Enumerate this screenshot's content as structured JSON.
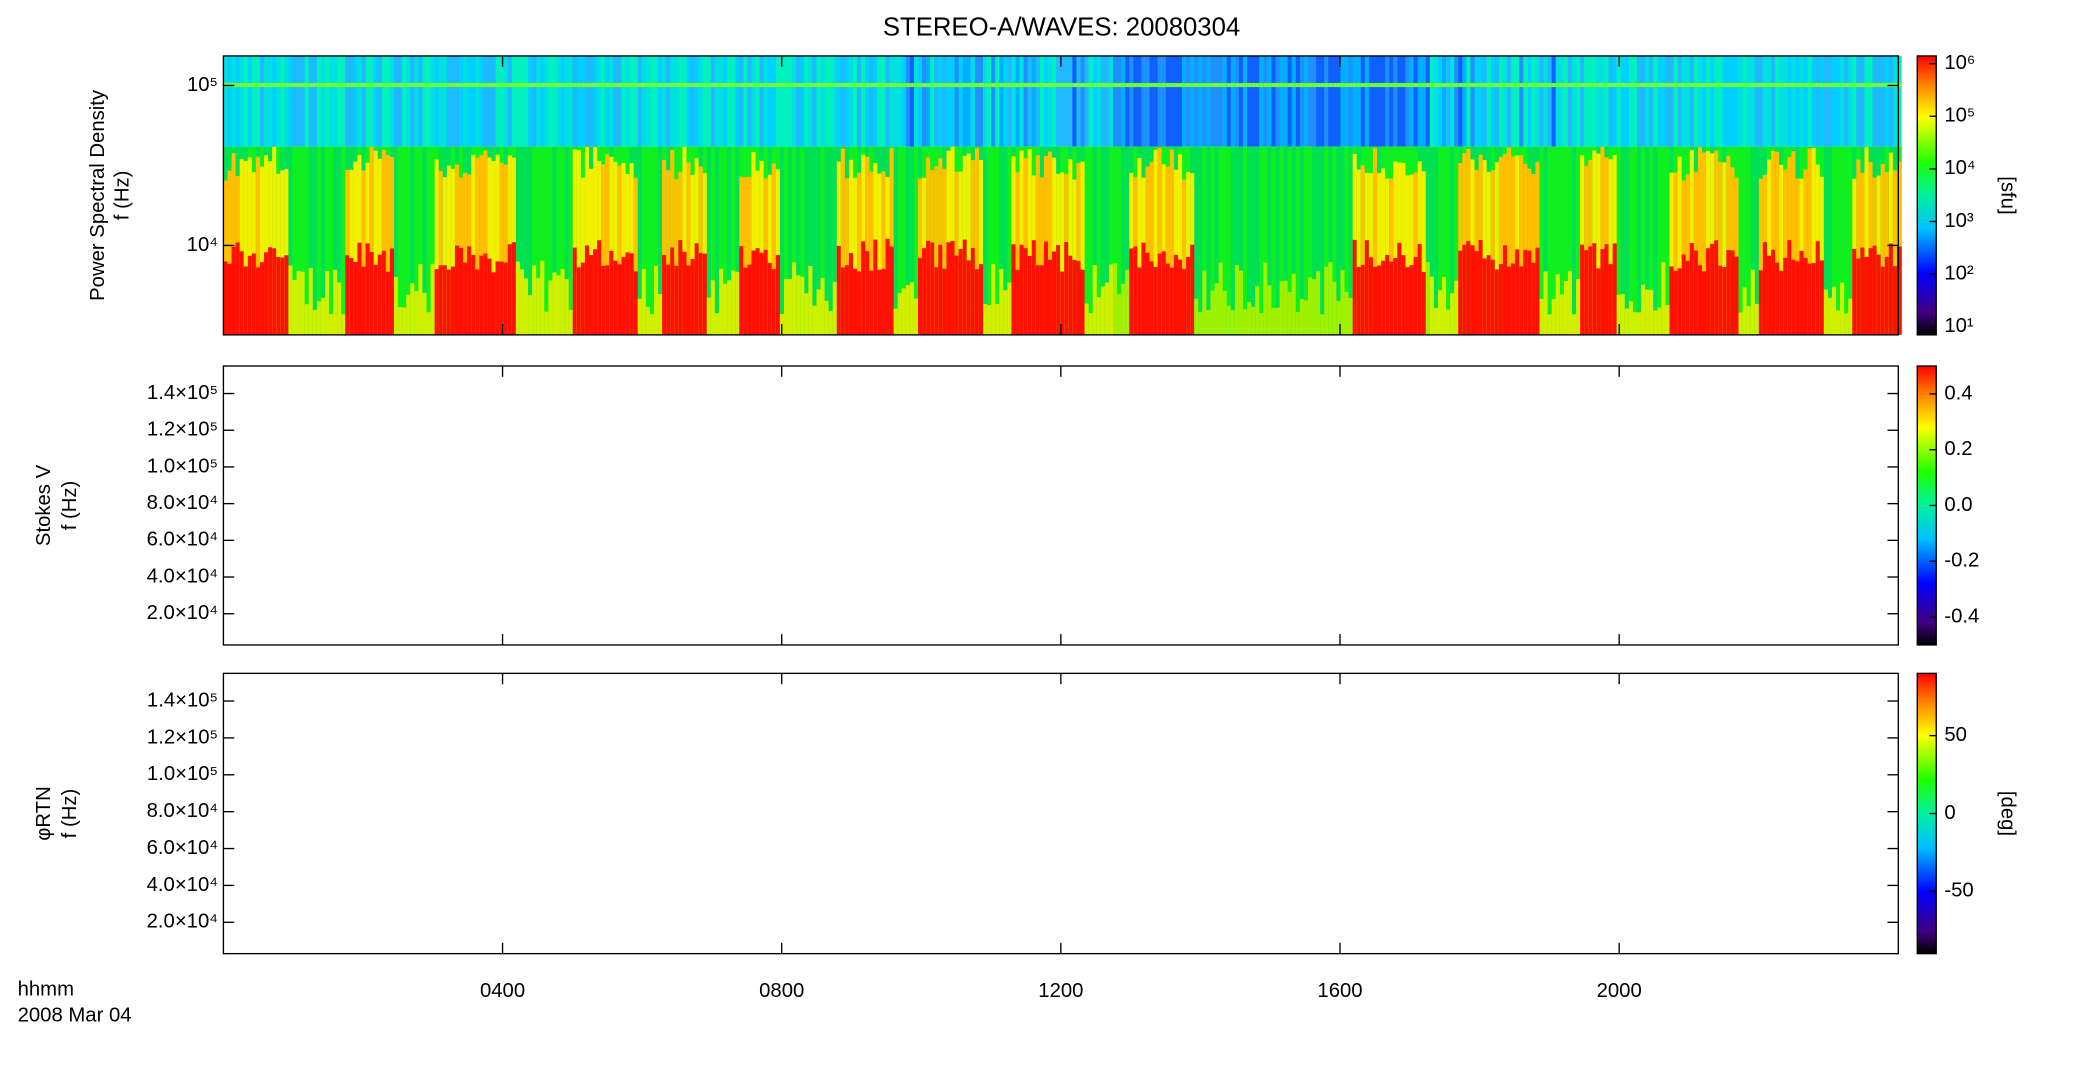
{
  "chart_data": [
    {
      "type": "spectrogram",
      "title": "STEREO-A/WAVES: 20080304",
      "ylabel": [
        "Power Spectral Density",
        "f (Hz)"
      ],
      "log_y": true,
      "ylim": [
        2760,
        153000
      ],
      "yticks": [
        {
          "value": 10000,
          "label": "10⁴"
        },
        {
          "value": 100000,
          "label": "10⁵"
        }
      ],
      "log_z": true,
      "zlim": [
        7,
        1400000
      ],
      "zticks": [
        {
          "value": 10,
          "label": "10¹"
        },
        {
          "value": 100,
          "label": "10²"
        },
        {
          "value": 1000,
          "label": "10³"
        },
        {
          "value": 10000,
          "label": "10⁴"
        },
        {
          "value": 100000,
          "label": "10⁵"
        },
        {
          "value": 1000000,
          "label": "10⁶"
        }
      ],
      "zlabel": "[sfu]"
    },
    {
      "type": "spectrogram",
      "ylabel": [
        "Stokes V",
        "f (Hz)"
      ],
      "log_y": false,
      "ylim": [
        3000,
        155000
      ],
      "yticks": [
        {
          "value": 20000,
          "label": "2.0×10⁴"
        },
        {
          "value": 40000,
          "label": "4.0×10⁴"
        },
        {
          "value": 60000,
          "label": "6.0×10⁴"
        },
        {
          "value": 80000,
          "label": "8.0×10⁴"
        },
        {
          "value": 100000,
          "label": "1.0×10⁵"
        },
        {
          "value": 120000,
          "label": "1.2×10⁵"
        },
        {
          "value": 140000,
          "label": "1.4×10⁵"
        }
      ],
      "log_z": false,
      "zlim": [
        -0.5,
        0.5
      ],
      "zticks": [
        -0.4,
        -0.2,
        {
          "value": 0,
          "label": "0.0"
        },
        0.2,
        0.4
      ]
    },
    {
      "type": "spectrogram",
      "ylabel": [
        "φRTN",
        "f (Hz)"
      ],
      "log_y": false,
      "ylim": [
        3000,
        155000
      ],
      "yticks": [
        {
          "value": 20000,
          "label": "2.0×10⁴"
        },
        {
          "value": 40000,
          "label": "4.0×10⁴"
        },
        {
          "value": 60000,
          "label": "6.0×10⁴"
        },
        {
          "value": 80000,
          "label": "8.0×10⁴"
        },
        {
          "value": 100000,
          "label": "1.0×10⁵"
        },
        {
          "value": 120000,
          "label": "1.2×10⁵"
        },
        {
          "value": 140000,
          "label": "1.4×10⁵"
        }
      ],
      "log_z": false,
      "zlim": [
        -90,
        90
      ],
      "zticks": [
        -50,
        0,
        50
      ],
      "zlabel": "[deg]",
      "xlim": [
        0,
        24
      ],
      "xticks": [
        {
          "value": 4,
          "label": "0400"
        },
        {
          "value": 8,
          "label": "0800"
        },
        {
          "value": 12,
          "label": "1200"
        },
        {
          "value": 16,
          "label": "1600"
        },
        {
          "value": 20,
          "label": "2000"
        }
      ],
      "xlabel": "hhmm",
      "date": "2008 Mar 04"
    }
  ]
}
